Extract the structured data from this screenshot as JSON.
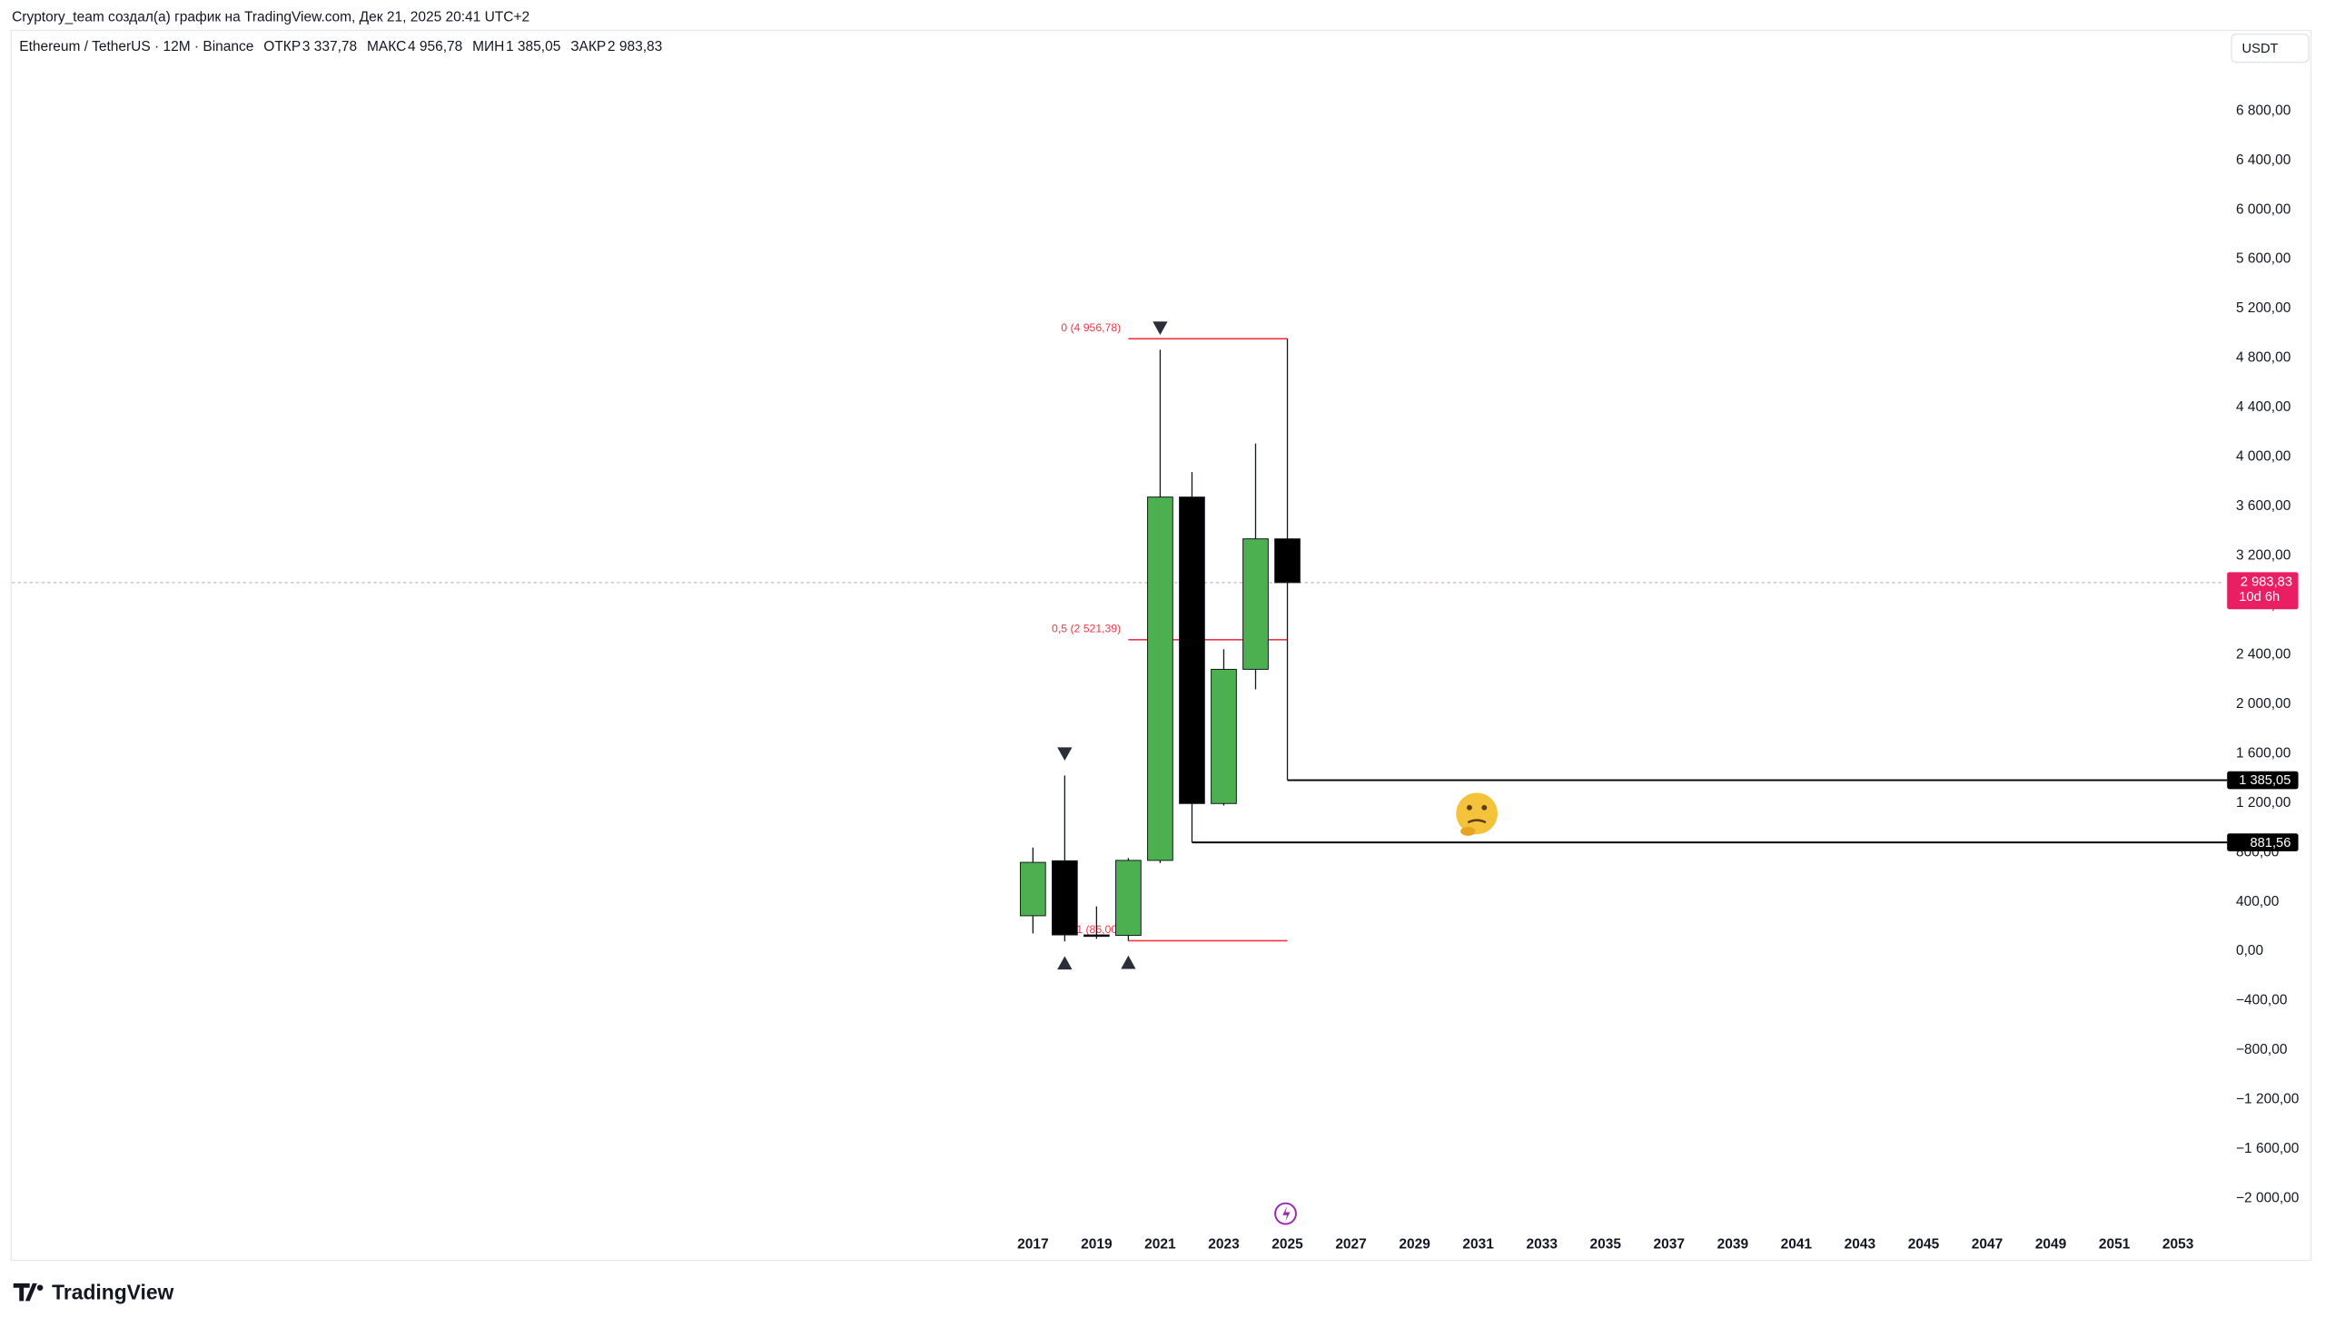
{
  "chart_data": {
    "type": "candlestick",
    "caption": "Cryptory_team создал(а) график на TradingView.com, Дек 21, 2025 20:41 UTC+2",
    "title": "Ethereum / TetherUS · 12M · Binance",
    "ohlc": [
      {
        "label": "ОТКР",
        "value": "3 337,78"
      },
      {
        "label": "МАКС",
        "value": "4 956,78"
      },
      {
        "label": "МИН",
        "value": "1 385,05"
      },
      {
        "label": "ЗАКР",
        "value": "2 983,83"
      }
    ],
    "currency": "USDT",
    "brand": "TradingView",
    "x": [
      2017,
      2018,
      2019,
      2020,
      2021,
      2022,
      2023,
      2024,
      2025
    ],
    "open": [
      288,
      733,
      133,
      129,
      736,
      3676,
      1196,
      2282,
      3337.78
    ],
    "high": [
      840,
      1423,
      364,
      755,
      4868,
      3878,
      2445,
      4109,
      4956.78
    ],
    "low": [
      145,
      81,
      101,
      86,
      714,
      881.56,
      1180,
      2120,
      1385.05
    ],
    "close": [
      720,
      133,
      129,
      736,
      3676,
      1196,
      2282,
      3337.78,
      2983.83
    ],
    "up_color": "#4caf50",
    "down_color": "#000000",
    "xlim": [
      1984.9,
      2054.45
    ],
    "xticks": [
      2017,
      2019,
      2021,
      2023,
      2025,
      2027,
      2029,
      2031,
      2033,
      2035,
      2037,
      2039,
      2041,
      2043,
      2045,
      2047,
      2049,
      2051,
      2053
    ],
    "ylim": [
      -2494,
      7458
    ],
    "yticks": [
      {
        "value": -2000,
        "label": "−2 000,00"
      },
      {
        "value": -1600,
        "label": "−1 600,00"
      },
      {
        "value": -1200,
        "label": "−1 200,00"
      },
      {
        "value": -800,
        "label": "−800,00"
      },
      {
        "value": -400,
        "label": "−400,00"
      },
      {
        "value": 0,
        "label": "0,00"
      },
      {
        "value": 400,
        "label": "400,00"
      },
      {
        "value": 800,
        "label": "800,00"
      },
      {
        "value": 1200,
        "label": "1 200,00"
      },
      {
        "value": 1600,
        "label": "1 600,00"
      },
      {
        "value": 2000,
        "label": "2 000,00"
      },
      {
        "value": 2400,
        "label": "2 400,00"
      },
      {
        "value": 2800,
        "label": "2 800,00"
      },
      {
        "value": 3200,
        "label": "3 200,00"
      },
      {
        "value": 3600,
        "label": "3 600,00"
      },
      {
        "value": 4000,
        "label": "4 000,00"
      },
      {
        "value": 4400,
        "label": "4 400,00"
      },
      {
        "value": 4800,
        "label": "4 800,00"
      },
      {
        "value": 5200,
        "label": "5 200,00"
      },
      {
        "value": 5600,
        "label": "5 600,00"
      },
      {
        "value": 6000,
        "label": "6 000,00"
      },
      {
        "value": 6400,
        "label": "6 400,00"
      },
      {
        "value": 6800,
        "label": "6 800,00"
      }
    ],
    "last_price": {
      "value": 2983.83,
      "label": "2 983,83",
      "countdown": "10d 6h"
    },
    "levels": [
      {
        "value": 1385.05,
        "label": "1 385,05",
        "from": 2025
      },
      {
        "value": 881.56,
        "label": "881,56",
        "from": 2022
      }
    ],
    "fib": {
      "from": 2020,
      "to": 2025,
      "color": "#f23645",
      "levels": [
        {
          "value": 4956.78,
          "label": "0 (4 956,78)"
        },
        {
          "value": 2521.39,
          "label": "0,5 (2 521,39)"
        },
        {
          "value": 86,
          "label": "1 (86,00)"
        }
      ]
    },
    "pivot_highs": [
      2018,
      2021
    ],
    "pivot_lows": [
      2018,
      2020
    ]
  }
}
